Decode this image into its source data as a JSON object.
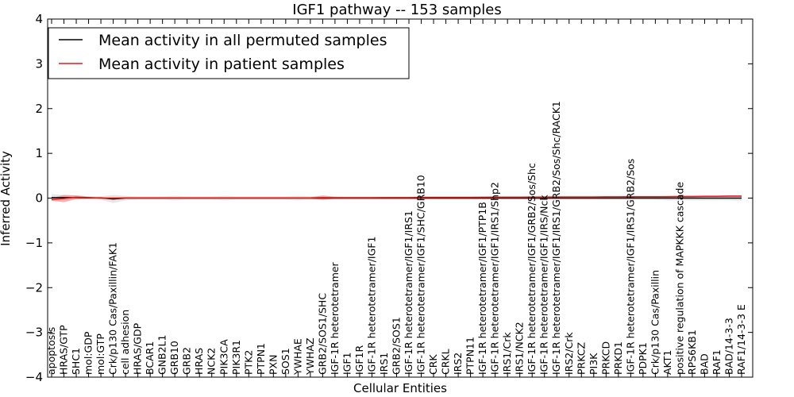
{
  "chart_data": {
    "type": "line",
    "title": "IGF1 pathway -- 153 samples",
    "xlabel": "Cellular Entities",
    "ylabel": "Inferred Activity",
    "ylim": [
      -4,
      4
    ],
    "yticks": [
      "−4",
      "−3",
      "−2",
      "−1",
      "0",
      "1",
      "2",
      "3",
      "4"
    ],
    "grid": false,
    "legend_position": "top-left",
    "categories": [
      "apoptosis",
      "HRAS/GTP",
      "SHC1",
      "mol:GDP",
      "mol:GTP",
      "Crk/p130 Cas/Paxillin/FAK1",
      "cell adhesion",
      "HRAS/GDP",
      "BCAR1",
      "GNB2L1",
      "GRB10",
      "GRB2",
      "HRAS",
      "NCK2",
      "PIK3CA",
      "PIK3R1",
      "PTK2",
      "PTPN1",
      "PXN",
      "SOS1",
      "YWHAE",
      "YWHAZ",
      "GRB2/SOS1/SHC",
      "IGF-1R heterotetramer",
      "IGF1",
      "IGF1R",
      "IGF-1R heterotetramer/IGF1",
      "IRS1",
      "GRB2/SOS1",
      "IGF-1R heterotetramer/IGF1/IRS1",
      "IGF-1R heterotetramer/IGF1/SHC/GRB10",
      "CRK",
      "CRKL",
      "IRS2",
      "PTPN11",
      "IGF-1R heterotetramer/IGF1/PTP1B",
      "IGF-1R heterotetramer/IGF1/IRS1/Shp2",
      "IRS1/Crk",
      "IRS1/NCK2",
      "IGF-1R heterotetramer/IGF1/GRB2/Sos/Shc",
      "IGF-1R heterotetramer/IGF1/IRS/Nck",
      "IGF-1R heterotetramer/IGF1/IRS1/GRB2/Sos/Shc/RACK1",
      "IRS2/Crk",
      "PRKCZ",
      "PI3K",
      "PRKCD",
      "PRKD1",
      "IGF-1R heterotetramer/IGF1/IRS1/GRB2/Sos",
      "PDPK1",
      "Crk/p130 Cas/Paxillin",
      "AKT1",
      "positive regulation of MAPKKK cascade",
      "RPS6KB1",
      "BAD",
      "RAF1",
      "BAD/14-3-3",
      "RAF1/14-3-3 E"
    ],
    "series": [
      {
        "name": "Mean activity in all permuted samples",
        "color": "#000000",
        "band_color": "#a0a0a0",
        "values": [
          0.01,
          0.01,
          0.01,
          0.005,
          0.005,
          -0.02,
          0.0,
          0.0,
          0.0,
          0.0,
          0.0,
          0.0,
          0.0,
          0.0,
          0.0,
          0.0,
          0.0,
          0.0,
          0.0,
          0.0,
          0.0,
          0.0,
          0.0,
          0.0,
          0.0,
          0.0,
          0.0,
          0.0,
          0.0,
          0.0,
          0.0,
          0.0,
          0.0,
          0.0,
          0.0,
          0.0,
          0.0,
          0.0,
          0.0,
          0.0,
          0.0,
          0.0,
          0.0,
          0.0,
          0.0,
          0.0,
          0.0,
          0.0,
          0.0,
          0.0,
          0.0,
          0.0,
          0.0,
          0.0,
          0.0,
          0.0,
          0.0
        ],
        "band": [
          0.08,
          0.06,
          0.05,
          0.04,
          0.04,
          0.09,
          0.05,
          0.04,
          0.04,
          0.04,
          0.05,
          0.04,
          0.04,
          0.04,
          0.05,
          0.04,
          0.04,
          0.04,
          0.04,
          0.04,
          0.05,
          0.04,
          0.04,
          0.04,
          0.04,
          0.04,
          0.04,
          0.04,
          0.04,
          0.04,
          0.04,
          0.04,
          0.04,
          0.04,
          0.04,
          0.04,
          0.04,
          0.04,
          0.04,
          0.04,
          0.04,
          0.04,
          0.04,
          0.04,
          0.04,
          0.04,
          0.04,
          0.04,
          0.04,
          0.04,
          0.05,
          0.05,
          0.05,
          0.05,
          0.05,
          0.05,
          0.06
        ]
      },
      {
        "name": "Mean activity in patient samples",
        "color": "#e31a1c",
        "band_color": "#f08080",
        "values": [
          -0.03,
          -0.01,
          0.02,
          0.01,
          0.0,
          0.0,
          0.005,
          0.005,
          0.005,
          0.005,
          0.005,
          0.005,
          0.005,
          0.005,
          0.005,
          0.005,
          0.005,
          0.005,
          0.005,
          0.005,
          0.005,
          0.005,
          0.01,
          0.008,
          0.008,
          0.008,
          0.008,
          0.01,
          0.01,
          0.012,
          0.015,
          0.015,
          0.015,
          0.015,
          0.015,
          0.018,
          0.02,
          0.02,
          0.02,
          0.022,
          0.022,
          0.025,
          0.025,
          0.025,
          0.025,
          0.028,
          0.028,
          0.03,
          0.03,
          0.03,
          0.032,
          0.035,
          0.035,
          0.04,
          0.04,
          0.045,
          0.045
        ],
        "band": [
          0.03,
          0.08,
          0.04,
          0.02,
          0.02,
          0.02,
          0.015,
          0.015,
          0.015,
          0.015,
          0.015,
          0.015,
          0.015,
          0.015,
          0.015,
          0.015,
          0.015,
          0.015,
          0.015,
          0.015,
          0.015,
          0.015,
          0.05,
          0.02,
          0.015,
          0.015,
          0.015,
          0.015,
          0.015,
          0.015,
          0.015,
          0.015,
          0.015,
          0.015,
          0.015,
          0.015,
          0.015,
          0.015,
          0.015,
          0.015,
          0.015,
          0.015,
          0.015,
          0.015,
          0.015,
          0.015,
          0.015,
          0.015,
          0.015,
          0.015,
          0.015,
          0.015,
          0.015,
          0.015,
          0.015,
          0.015,
          0.015
        ]
      }
    ]
  }
}
